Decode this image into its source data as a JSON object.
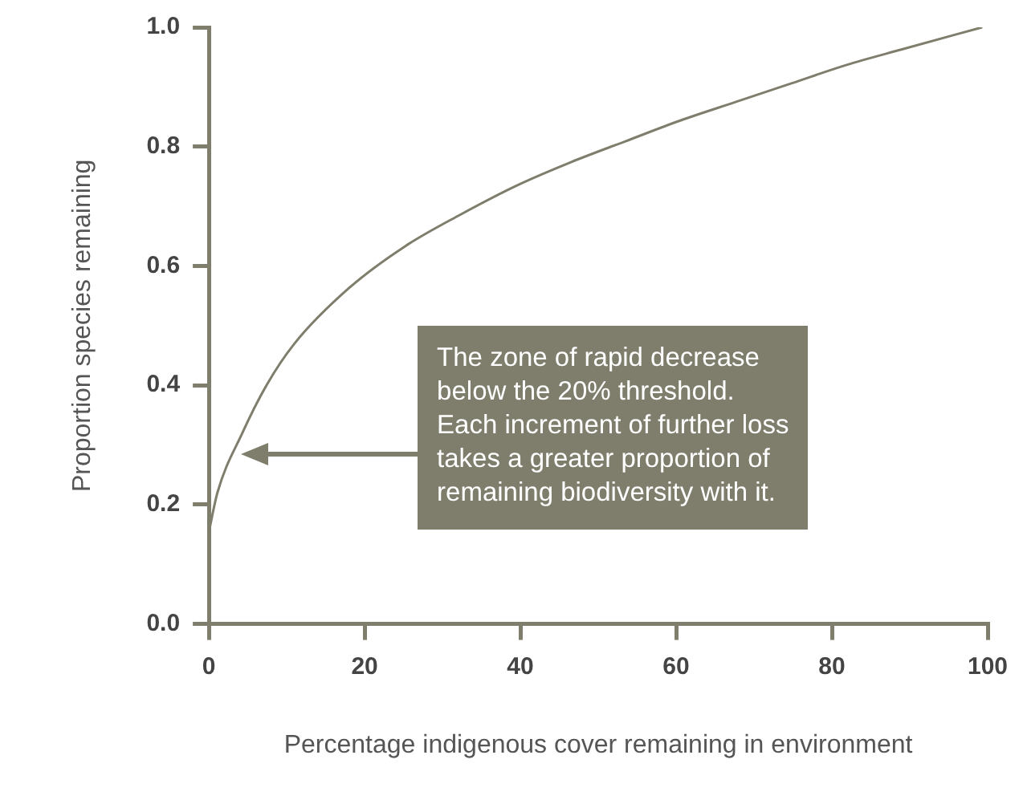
{
  "chart_data": {
    "type": "line",
    "xlabel": "Percentage indigenous cover remaining in environment",
    "ylabel": "Proportion species remaining",
    "x": [
      0,
      1.1,
      4.3,
      7.4,
      11,
      18,
      25.2,
      32.3,
      39.4,
      46.5,
      53.5,
      60.6,
      67.7,
      74.8,
      81.9,
      89,
      99.3
    ],
    "series": [
      {
        "color": "#7f7e6c",
        "values": [
          0.154,
          0.22,
          0.32,
          0.4,
          0.47,
          0.563,
          0.633,
          0.686,
          0.734,
          0.774,
          0.809,
          0.844,
          0.875,
          0.906,
          0.937,
          0.963,
          1.0
        ]
      }
    ],
    "xlim": [
      0,
      100
    ],
    "xticks": [
      0,
      20,
      40,
      60,
      80,
      100
    ],
    "ylim": [
      0,
      1
    ],
    "yticks": [
      {
        "value": 0,
        "label": "0.0"
      },
      {
        "value": 0.2,
        "label": "0.2"
      },
      {
        "value": 0.4,
        "label": "0.4"
      },
      {
        "value": 0.6,
        "label": "0.6"
      },
      {
        "value": 0.8,
        "label": "0.8"
      },
      {
        "value": 1,
        "label": "1.0"
      }
    ],
    "grid": false,
    "legend": false,
    "marker": "none",
    "line_style": "solid",
    "annotations": [
      "The zone of rapid decrease\nbelow the 20% threshold.\nEach increment of further loss\ntakes a greater proportion of\nremaining biodiversity with it."
    ]
  }
}
